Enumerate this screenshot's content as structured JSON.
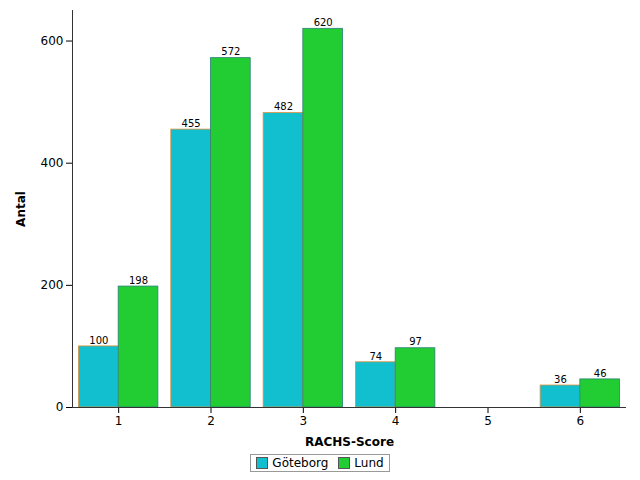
{
  "chart_data": {
    "type": "bar",
    "x_label": "RACHS-Score",
    "y_label": "Antal",
    "categories": [
      "1",
      "2",
      "3",
      "4",
      "5",
      "6"
    ],
    "series": [
      {
        "name": "Göteborg",
        "color": "#12bfcf",
        "values": [
          100,
          455,
          482,
          74,
          null,
          36
        ]
      },
      {
        "name": "Lund",
        "color": "#22cc33",
        "values": [
          198,
          572,
          620,
          97,
          null,
          46
        ]
      }
    ],
    "ylim": [
      0,
      650
    ],
    "yticks": [
      0,
      200,
      400,
      600
    ],
    "grid": false,
    "data_labels": true,
    "legend": "bottom"
  }
}
